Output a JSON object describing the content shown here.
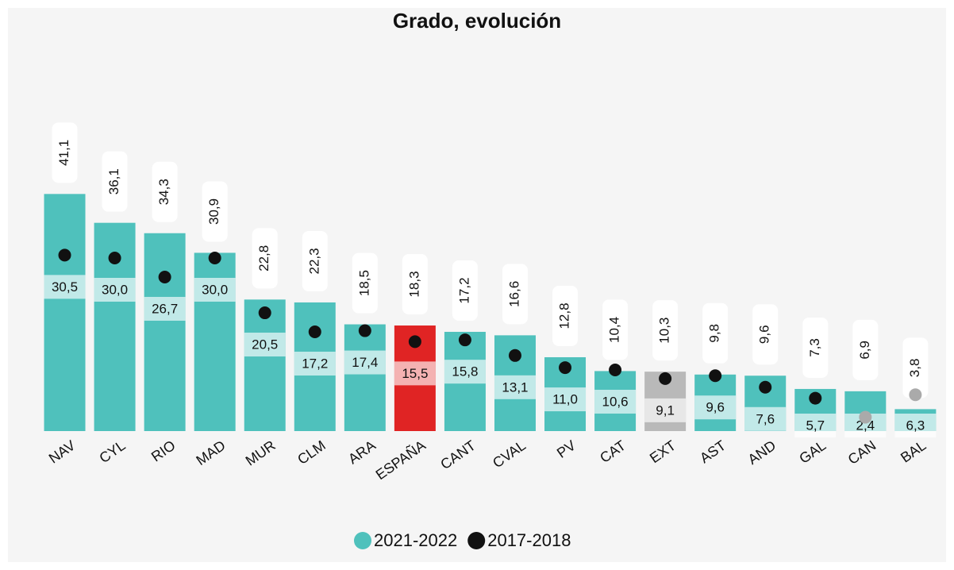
{
  "chart_data": {
    "type": "bar",
    "title": "Grado, evolución",
    "categories": [
      "NAV",
      "CYL",
      "RIO",
      "MAD",
      "MUR",
      "CLM",
      "ARA",
      "ESPAÑA",
      "CANT",
      "CVAL",
      "PV",
      "CAT",
      "EXT",
      "AST",
      "AND",
      "GAL",
      "CAN",
      "BAL"
    ],
    "series": [
      {
        "name": "2021-2022",
        "color": "#4fc1bc",
        "colors": [
          "#4fc1bc",
          "#4fc1bc",
          "#4fc1bc",
          "#4fc1bc",
          "#4fc1bc",
          "#4fc1bc",
          "#4fc1bc",
          "#e02424",
          "#4fc1bc",
          "#4fc1bc",
          "#4fc1bc",
          "#4fc1bc",
          "#b9b9b9",
          "#4fc1bc",
          "#4fc1bc",
          "#4fc1bc",
          "#4fc1bc",
          "#4fc1bc"
        ],
        "values": [
          41.1,
          36.1,
          34.3,
          30.9,
          22.8,
          22.3,
          18.5,
          18.3,
          17.2,
          16.6,
          12.8,
          10.4,
          10.3,
          9.8,
          9.6,
          7.3,
          6.9,
          3.8
        ],
        "value_labels": [
          "41,1",
          "36,1",
          "34,3",
          "30,9",
          "22,8",
          "22,3",
          "18,5",
          "18,3",
          "17,2",
          "16,6",
          "12,8",
          "10,4",
          "10,3",
          "9,8",
          "9,6",
          "7,3",
          "6,9",
          "3,8"
        ]
      },
      {
        "name": "2017-2018",
        "color": "#111111",
        "colors": [
          "#111111",
          "#111111",
          "#111111",
          "#111111",
          "#111111",
          "#111111",
          "#111111",
          "#111111",
          "#111111",
          "#111111",
          "#111111",
          "#111111",
          "#111111",
          "#111111",
          "#111111",
          "#111111",
          "#aaaaaa",
          "#aaaaaa"
        ],
        "values": [
          30.5,
          30.0,
          26.7,
          30.0,
          20.5,
          17.2,
          17.4,
          15.5,
          15.8,
          13.1,
          11.0,
          10.6,
          9.1,
          9.6,
          7.6,
          5.7,
          2.4,
          6.3
        ],
        "value_labels": [
          "30,5",
          "30,0",
          "26,7",
          "30,0",
          "20,5",
          "17,2",
          "17,4",
          "15,5",
          "15,8",
          "13,1",
          "11,0",
          "10,6",
          "9,1",
          "9,6",
          "7,6",
          "5,7",
          "2,4",
          "6,3"
        ]
      }
    ],
    "ylim": [
      0,
      45
    ]
  }
}
